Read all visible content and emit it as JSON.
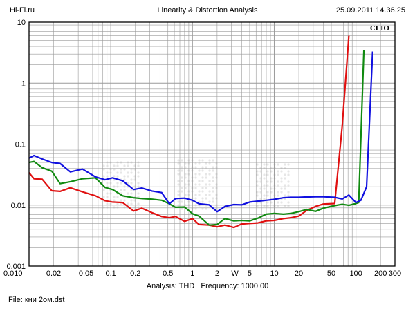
{
  "header": {
    "site": "Hi-Fi.ru",
    "title": "Linearity & Distortion Analysis",
    "timestamp": "25.09.2011 14.36.25"
  },
  "brand": "CLIO",
  "footer": {
    "analysis_label": "Analysis: THD",
    "frequency_label": "Frequency: 1000.00",
    "file": "File: кни 2ом.dst"
  },
  "colors": {
    "background": "#ffffff",
    "grid": "#9a9a9a",
    "frame": "#000000",
    "watermark": "#e6e6e6"
  },
  "chart_data": {
    "type": "line",
    "title": "Linearity & Distortion Analysis",
    "x_scale": "log",
    "y_scale": "log",
    "xlim": [
      0.01,
      300
    ],
    "ylim": [
      0.001,
      10
    ],
    "grid": true,
    "x_tick_labels": [
      {
        "value": 0.01,
        "label": "0.010"
      },
      {
        "value": 0.02,
        "label": "0.02"
      },
      {
        "value": 0.05,
        "label": "0.05"
      },
      {
        "value": 0.1,
        "label": "0.1"
      },
      {
        "value": 0.2,
        "label": "0.2"
      },
      {
        "value": 0.5,
        "label": "0.5"
      },
      {
        "value": 1,
        "label": "1"
      },
      {
        "value": 2,
        "label": "2"
      },
      {
        "value": 3.3,
        "label": "W"
      },
      {
        "value": 5,
        "label": "5"
      },
      {
        "value": 10,
        "label": "10"
      },
      {
        "value": 20,
        "label": "20"
      },
      {
        "value": 50,
        "label": "50"
      },
      {
        "value": 100,
        "label": "100"
      },
      {
        "value": 200,
        "label": "200"
      },
      {
        "value": 300,
        "label": "300"
      }
    ],
    "y_tick_labels": [
      {
        "value": 10,
        "label": "10"
      },
      {
        "value": 1,
        "label": "1"
      },
      {
        "value": 0.1,
        "label": "0.1"
      },
      {
        "value": 0.01,
        "label": "0.01"
      },
      {
        "value": 0.001,
        "label": "0.001"
      }
    ],
    "series": [
      {
        "color": "#e01010",
        "x": [
          0.01,
          0.0115,
          0.0145,
          0.019,
          0.024,
          0.032,
          0.045,
          0.065,
          0.085,
          0.105,
          0.14,
          0.19,
          0.24,
          0.32,
          0.42,
          0.52,
          0.62,
          0.8,
          1.0,
          1.2,
          1.6,
          2.0,
          2.5,
          3.2,
          4.0,
          5.0,
          6.3,
          8.0,
          10.0,
          13.0,
          16.0,
          20.0,
          25.0,
          32.0,
          40.0,
          55.0,
          68.0,
          82.0
        ],
        "y": [
          0.034,
          0.027,
          0.0265,
          0.0172,
          0.0168,
          0.0192,
          0.0165,
          0.0142,
          0.0118,
          0.0112,
          0.011,
          0.008,
          0.0089,
          0.0075,
          0.0065,
          0.0062,
          0.0065,
          0.0054,
          0.006,
          0.0048,
          0.0047,
          0.0044,
          0.0047,
          0.0043,
          0.0049,
          0.005,
          0.0051,
          0.0055,
          0.0056,
          0.006,
          0.0062,
          0.0066,
          0.0082,
          0.0095,
          0.0104,
          0.0106,
          0.2,
          6.0
        ]
      },
      {
        "color": "#108a10",
        "x": [
          0.01,
          0.0115,
          0.0145,
          0.019,
          0.024,
          0.032,
          0.045,
          0.065,
          0.085,
          0.105,
          0.14,
          0.19,
          0.24,
          0.32,
          0.42,
          0.52,
          0.62,
          0.8,
          1.0,
          1.2,
          1.6,
          2.0,
          2.5,
          3.2,
          4.0,
          5.0,
          6.3,
          8.0,
          10.0,
          13.0,
          16.0,
          20.0,
          25.0,
          32.0,
          40.0,
          55.0,
          68.0,
          82.0,
          100.0,
          108.0,
          125.0
        ],
        "y": [
          0.05,
          0.052,
          0.041,
          0.036,
          0.0225,
          0.0242,
          0.027,
          0.028,
          0.0195,
          0.018,
          0.0142,
          0.0132,
          0.0128,
          0.0125,
          0.012,
          0.0105,
          0.0092,
          0.0093,
          0.0072,
          0.0066,
          0.0047,
          0.0048,
          0.006,
          0.0055,
          0.0056,
          0.0055,
          0.0061,
          0.0071,
          0.0073,
          0.0071,
          0.0073,
          0.0078,
          0.0085,
          0.0079,
          0.0089,
          0.0098,
          0.0103,
          0.0099,
          0.0106,
          0.011,
          3.5
        ]
      },
      {
        "color": "#1010e0",
        "x": [
          0.01,
          0.0115,
          0.0145,
          0.019,
          0.024,
          0.032,
          0.045,
          0.065,
          0.085,
          0.105,
          0.14,
          0.19,
          0.24,
          0.32,
          0.42,
          0.52,
          0.62,
          0.8,
          1.0,
          1.2,
          1.6,
          2.0,
          2.5,
          3.2,
          4.0,
          5.0,
          6.3,
          8.0,
          10.0,
          13.0,
          16.0,
          20.0,
          25.0,
          32.0,
          40.0,
          55.0,
          68.0,
          82.0,
          100.0,
          115.0,
          135.0,
          160.0
        ],
        "y": [
          0.059,
          0.065,
          0.057,
          0.05,
          0.048,
          0.035,
          0.039,
          0.029,
          0.026,
          0.028,
          0.025,
          0.018,
          0.019,
          0.017,
          0.016,
          0.0105,
          0.0128,
          0.013,
          0.012,
          0.0105,
          0.0101,
          0.0078,
          0.0095,
          0.0102,
          0.0101,
          0.0112,
          0.0116,
          0.012,
          0.0124,
          0.0132,
          0.0134,
          0.0134,
          0.0136,
          0.0137,
          0.0137,
          0.0134,
          0.0126,
          0.0146,
          0.011,
          0.012,
          0.02,
          3.3
        ]
      }
    ]
  }
}
